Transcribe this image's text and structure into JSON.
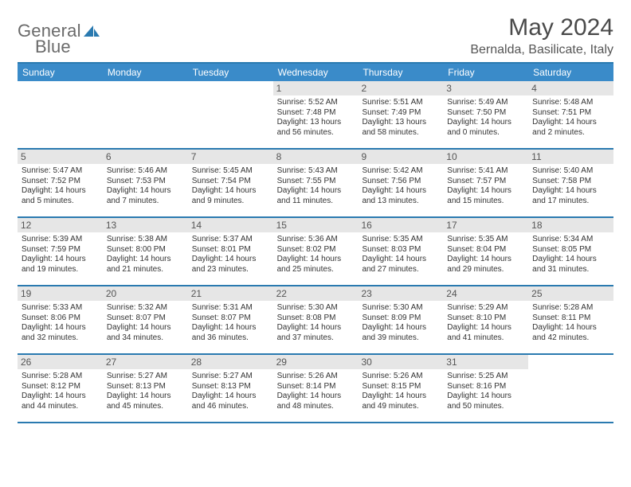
{
  "brand": {
    "text_left": "General",
    "text_right": "Blue",
    "accent_color": "#2a7ab0"
  },
  "header": {
    "title": "May 2024",
    "location": "Bernalda, Basilicate, Italy"
  },
  "style": {
    "dow_background": "#3a8bc9",
    "dow_text_color": "#ffffff",
    "rule_color": "#2a7ab0",
    "daynum_background": "#e6e6e6",
    "page_background": "#ffffff",
    "text_color": "#333333",
    "title_fontsize": 30,
    "location_fontsize": 16,
    "dow_fontsize": 12,
    "daynum_fontsize": 12,
    "body_fontsize": 10
  },
  "days_of_week": [
    "Sunday",
    "Monday",
    "Tuesday",
    "Wednesday",
    "Thursday",
    "Friday",
    "Saturday"
  ],
  "weeks": [
    [
      {
        "n": "",
        "lines": []
      },
      {
        "n": "",
        "lines": []
      },
      {
        "n": "",
        "lines": []
      },
      {
        "n": "1",
        "lines": [
          "Sunrise: 5:52 AM",
          "Sunset: 7:48 PM",
          "Daylight: 13 hours and 56 minutes."
        ]
      },
      {
        "n": "2",
        "lines": [
          "Sunrise: 5:51 AM",
          "Sunset: 7:49 PM",
          "Daylight: 13 hours and 58 minutes."
        ]
      },
      {
        "n": "3",
        "lines": [
          "Sunrise: 5:49 AM",
          "Sunset: 7:50 PM",
          "Daylight: 14 hours and 0 minutes."
        ]
      },
      {
        "n": "4",
        "lines": [
          "Sunrise: 5:48 AM",
          "Sunset: 7:51 PM",
          "Daylight: 14 hours and 2 minutes."
        ]
      }
    ],
    [
      {
        "n": "5",
        "lines": [
          "Sunrise: 5:47 AM",
          "Sunset: 7:52 PM",
          "Daylight: 14 hours and 5 minutes."
        ]
      },
      {
        "n": "6",
        "lines": [
          "Sunrise: 5:46 AM",
          "Sunset: 7:53 PM",
          "Daylight: 14 hours and 7 minutes."
        ]
      },
      {
        "n": "7",
        "lines": [
          "Sunrise: 5:45 AM",
          "Sunset: 7:54 PM",
          "Daylight: 14 hours and 9 minutes."
        ]
      },
      {
        "n": "8",
        "lines": [
          "Sunrise: 5:43 AM",
          "Sunset: 7:55 PM",
          "Daylight: 14 hours and 11 minutes."
        ]
      },
      {
        "n": "9",
        "lines": [
          "Sunrise: 5:42 AM",
          "Sunset: 7:56 PM",
          "Daylight: 14 hours and 13 minutes."
        ]
      },
      {
        "n": "10",
        "lines": [
          "Sunrise: 5:41 AM",
          "Sunset: 7:57 PM",
          "Daylight: 14 hours and 15 minutes."
        ]
      },
      {
        "n": "11",
        "lines": [
          "Sunrise: 5:40 AM",
          "Sunset: 7:58 PM",
          "Daylight: 14 hours and 17 minutes."
        ]
      }
    ],
    [
      {
        "n": "12",
        "lines": [
          "Sunrise: 5:39 AM",
          "Sunset: 7:59 PM",
          "Daylight: 14 hours and 19 minutes."
        ]
      },
      {
        "n": "13",
        "lines": [
          "Sunrise: 5:38 AM",
          "Sunset: 8:00 PM",
          "Daylight: 14 hours and 21 minutes."
        ]
      },
      {
        "n": "14",
        "lines": [
          "Sunrise: 5:37 AM",
          "Sunset: 8:01 PM",
          "Daylight: 14 hours and 23 minutes."
        ]
      },
      {
        "n": "15",
        "lines": [
          "Sunrise: 5:36 AM",
          "Sunset: 8:02 PM",
          "Daylight: 14 hours and 25 minutes."
        ]
      },
      {
        "n": "16",
        "lines": [
          "Sunrise: 5:35 AM",
          "Sunset: 8:03 PM",
          "Daylight: 14 hours and 27 minutes."
        ]
      },
      {
        "n": "17",
        "lines": [
          "Sunrise: 5:35 AM",
          "Sunset: 8:04 PM",
          "Daylight: 14 hours and 29 minutes."
        ]
      },
      {
        "n": "18",
        "lines": [
          "Sunrise: 5:34 AM",
          "Sunset: 8:05 PM",
          "Daylight: 14 hours and 31 minutes."
        ]
      }
    ],
    [
      {
        "n": "19",
        "lines": [
          "Sunrise: 5:33 AM",
          "Sunset: 8:06 PM",
          "Daylight: 14 hours and 32 minutes."
        ]
      },
      {
        "n": "20",
        "lines": [
          "Sunrise: 5:32 AM",
          "Sunset: 8:07 PM",
          "Daylight: 14 hours and 34 minutes."
        ]
      },
      {
        "n": "21",
        "lines": [
          "Sunrise: 5:31 AM",
          "Sunset: 8:07 PM",
          "Daylight: 14 hours and 36 minutes."
        ]
      },
      {
        "n": "22",
        "lines": [
          "Sunrise: 5:30 AM",
          "Sunset: 8:08 PM",
          "Daylight: 14 hours and 37 minutes."
        ]
      },
      {
        "n": "23",
        "lines": [
          "Sunrise: 5:30 AM",
          "Sunset: 8:09 PM",
          "Daylight: 14 hours and 39 minutes."
        ]
      },
      {
        "n": "24",
        "lines": [
          "Sunrise: 5:29 AM",
          "Sunset: 8:10 PM",
          "Daylight: 14 hours and 41 minutes."
        ]
      },
      {
        "n": "25",
        "lines": [
          "Sunrise: 5:28 AM",
          "Sunset: 8:11 PM",
          "Daylight: 14 hours and 42 minutes."
        ]
      }
    ],
    [
      {
        "n": "26",
        "lines": [
          "Sunrise: 5:28 AM",
          "Sunset: 8:12 PM",
          "Daylight: 14 hours and 44 minutes."
        ]
      },
      {
        "n": "27",
        "lines": [
          "Sunrise: 5:27 AM",
          "Sunset: 8:13 PM",
          "Daylight: 14 hours and 45 minutes."
        ]
      },
      {
        "n": "28",
        "lines": [
          "Sunrise: 5:27 AM",
          "Sunset: 8:13 PM",
          "Daylight: 14 hours and 46 minutes."
        ]
      },
      {
        "n": "29",
        "lines": [
          "Sunrise: 5:26 AM",
          "Sunset: 8:14 PM",
          "Daylight: 14 hours and 48 minutes."
        ]
      },
      {
        "n": "30",
        "lines": [
          "Sunrise: 5:26 AM",
          "Sunset: 8:15 PM",
          "Daylight: 14 hours and 49 minutes."
        ]
      },
      {
        "n": "31",
        "lines": [
          "Sunrise: 5:25 AM",
          "Sunset: 8:16 PM",
          "Daylight: 14 hours and 50 minutes."
        ]
      },
      {
        "n": "",
        "lines": []
      }
    ]
  ]
}
